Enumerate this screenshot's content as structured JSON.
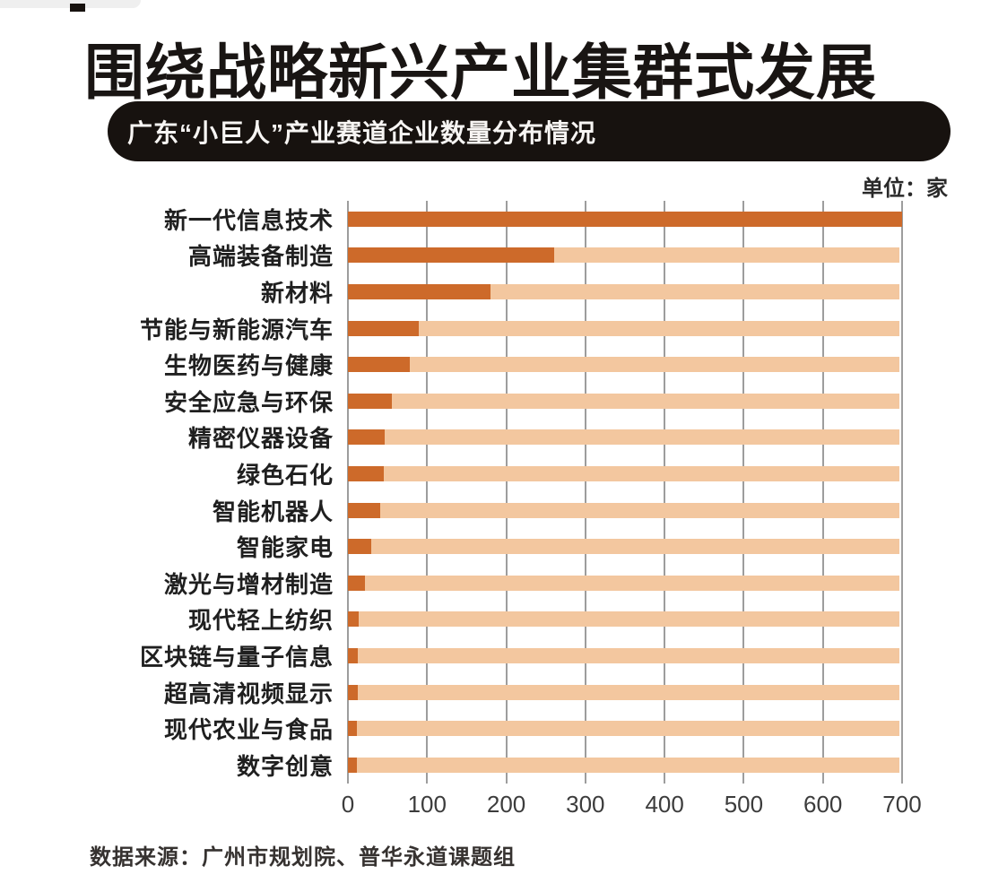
{
  "page": {
    "title": "围绕战略新兴产业集群式发展",
    "banner": "广东“小巨人”产业赛道企业数量分布情况",
    "unit_label": "单位：家",
    "source": "数据来源：广州市规划院、普华永道课题组"
  },
  "colors": {
    "bar_dark": "#cd6a2a",
    "bar_light": "#f3c79f",
    "banner_bg": "#17120f",
    "gridline": "#9d9d9d"
  },
  "chart_data": {
    "type": "bar",
    "orientation": "horizontal",
    "title": "广东“小巨人”产业赛道企业数量分布情况",
    "unit": "家",
    "categories": [
      "新一代信息技术",
      "高端装备制造",
      "新材料",
      "节能与新能源汽车",
      "生物医药与健康",
      "安全应急与环保",
      "精密仪器设备",
      "绿色石化",
      "智能机器人",
      "智能家电",
      "激光与增材制造",
      "现代轻上纺织",
      "区块链与量子信息",
      "超高清视频显示",
      "现代农业与食品",
      "数字创意"
    ],
    "values": [
      700,
      260,
      180,
      90,
      78,
      55,
      46,
      45,
      41,
      30,
      22,
      14,
      13,
      12,
      11,
      11
    ],
    "track_background_value": 697,
    "x_ticks": [
      0,
      100,
      200,
      300,
      400,
      500,
      600,
      700
    ],
    "xlim": [
      0,
      700
    ],
    "grid": true,
    "legend": false,
    "source": "数据来源：广州市规划院、普华永道课题组"
  }
}
